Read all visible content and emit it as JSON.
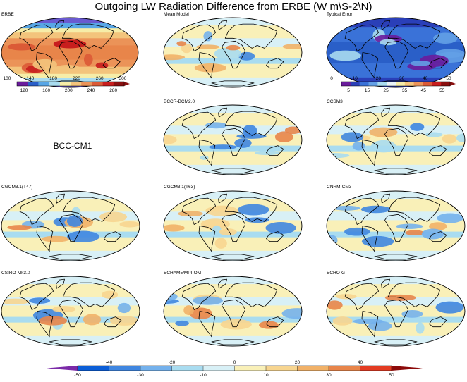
{
  "title": "Outgoing LW Radiation Difference from ERBE (W m\\S-2\\N)",
  "panels": [
    {
      "label": "ERBE",
      "kind": "abs"
    },
    {
      "label": "Mean Model",
      "kind": "diff"
    },
    {
      "label": "Typical Error",
      "kind": "err"
    },
    {
      "label": "BCCR-BCM2.0",
      "kind": "diff"
    },
    {
      "label": "CCSM3",
      "kind": "diff"
    },
    {
      "label": "CGCM3.1(T47)",
      "kind": "diff"
    },
    {
      "label": "CGCM3.1(T63)",
      "kind": "diff"
    },
    {
      "label": "CNRM-CM3",
      "kind": "diff"
    },
    {
      "label": "CSIRO-Mk3.0",
      "kind": "diff"
    },
    {
      "label": "ECHAM5/MPI-OM",
      "kind": "diff"
    },
    {
      "label": "ECHO-G",
      "kind": "diff"
    }
  ],
  "missing_model_label": "BCC-CM1",
  "colorbars": {
    "erbe": {
      "top_ticks": [
        "100",
        "140",
        "180",
        "220",
        "260",
        "300"
      ],
      "bottom_ticks": [
        "120",
        "160",
        "200",
        "240",
        "280"
      ],
      "colors": [
        "#6a1c9c",
        "#2a5fc8",
        "#58a6e6",
        "#a9dcf0",
        "#f6eda8",
        "#f3c47c",
        "#eb9358",
        "#db5a36",
        "#c81e1e",
        "#8a1010"
      ]
    },
    "error": {
      "top_ticks": [
        "0",
        "10",
        "20",
        "30",
        "40",
        "50"
      ],
      "bottom_ticks": [
        "5",
        "15",
        "25",
        "35",
        "45",
        "55"
      ],
      "colors": [
        "#6a1c9c",
        "#2a3fb8",
        "#3a72d8",
        "#63a0e6",
        "#a9dcf0",
        "#e9f4f8",
        "#f6eda8",
        "#f3c47c",
        "#eb9358",
        "#db5a36",
        "#c81e1e",
        "#8a1010"
      ]
    },
    "diff": {
      "top_ticks": [
        "-40",
        "-20",
        "0",
        "20",
        "40"
      ],
      "bottom_ticks": [
        "-50",
        "-30",
        "-10",
        "10",
        "30",
        "50"
      ],
      "colors": [
        "#0b5ed7",
        "#3f86e0",
        "#74b1ec",
        "#a9dcf0",
        "#d8f0f6",
        "#f9f0b8",
        "#f7d590",
        "#f1b168",
        "#e8854a",
        "#e33b22"
      ],
      "low_color": "#7b2aa8",
      "high_color": "#8c0a0a"
    }
  }
}
